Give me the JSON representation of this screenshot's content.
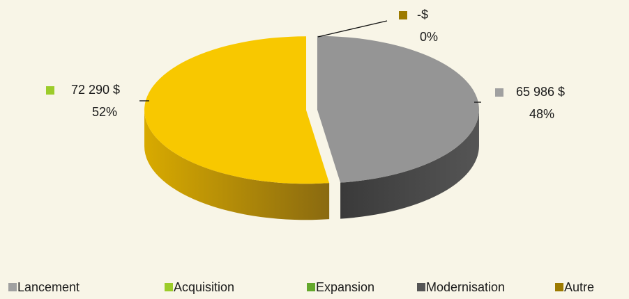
{
  "chart_data": {
    "type": "pie3d",
    "categories": [
      "Lancement",
      "Acquisition",
      "Expansion",
      "Modernisation",
      "Autre"
    ],
    "values": [
      65986,
      72290,
      0,
      0,
      0
    ],
    "value_labels": [
      "65 986 $",
      "72 290 $",
      null,
      null,
      "-$"
    ],
    "percent_labels": [
      "48%",
      "52%",
      null,
      null,
      "0%"
    ],
    "colors": [
      "#a0a0a0",
      "#9ccc2a",
      "#64a82c",
      "#555555",
      "#9c7a00"
    ],
    "slice_colors": [
      "#959595",
      "#f8c800",
      "#64a82c",
      "#555555",
      "#9c7a00"
    ],
    "legend": "bottom"
  }
}
